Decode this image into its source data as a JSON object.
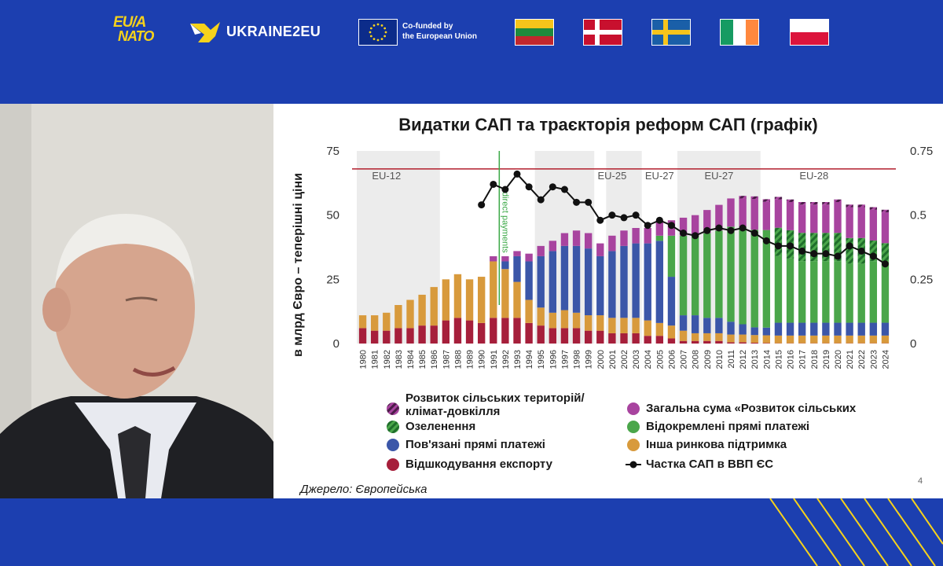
{
  "header": {
    "logo_eu_nato_line1": "EU/A",
    "logo_eu_nato_line2": "NATO",
    "logo_ukraine2eu": "UKRAINE2EU",
    "eu_cofunded_line1": "Co-funded by",
    "eu_cofunded_line2": "the European Union",
    "flags": [
      "lithuania-flag",
      "denmark-flag",
      "sweden-flag",
      "ireland-flag",
      "poland-flag"
    ]
  },
  "slide": {
    "source_text": "Джерело: Європейська",
    "page_number": "4"
  },
  "colors": {
    "export_refunds": "#a61f3b",
    "other_market": "#d89a3c",
    "coupled": "#3b56a8",
    "decoupled": "#4aa64a",
    "greening": "#2f8a3a",
    "rural_total": "#a8449f",
    "rural_climate": "#7d2f78",
    "gdp_line": "#111111",
    "ceiling_line": "#b21f2d",
    "brand_blue": "#1c3fb0"
  },
  "chart_data": {
    "type": "bar",
    "title": "Видатки САП та траєкторія реформ САП (графік)",
    "ylabel": "в млрд Євро – теперішні ціни",
    "ylim": [
      0,
      75
    ],
    "y_ticks": [
      "0",
      "25",
      "50",
      "75"
    ],
    "y2lim": [
      0,
      0.75
    ],
    "y2_ticks": [
      "0",
      "0.25",
      "0.5",
      "0.75"
    ],
    "ceiling_value": 68,
    "x": [
      "1980",
      "1981",
      "1982",
      "1983",
      "1984",
      "1985",
      "1986",
      "1987",
      "1988",
      "1989",
      "1990",
      "1991",
      "1992",
      "1993",
      "1994",
      "1995",
      "1996",
      "1997",
      "1998",
      "1999",
      "2000",
      "2001",
      "2002",
      "2003",
      "2004",
      "2005",
      "2006",
      "2007",
      "2008",
      "2009",
      "2010",
      "2011",
      "2012",
      "2013",
      "2014",
      "2015",
      "2016",
      "2017",
      "2018",
      "2019",
      "2020",
      "2021",
      "2022",
      "2023",
      "2024"
    ],
    "shaded_periods": [
      {
        "label": "EU-12",
        "from": "1980",
        "to": "1986"
      },
      {
        "label": "",
        "from": "1995",
        "to": "1999"
      },
      {
        "label": "EU-25",
        "from": "2001",
        "to": "2003"
      },
      {
        "label": "EU-27",
        "from": "2007",
        "to": "2013"
      }
    ],
    "period_labels": [
      {
        "label": "EU-12",
        "at": "1982"
      },
      {
        "label": "EU-25",
        "at": "2001"
      },
      {
        "label": "EU-27",
        "at": "2005"
      },
      {
        "label": "EU-27",
        "at": "2010"
      },
      {
        "label": "EU-28",
        "at": "2018"
      }
    ],
    "annotation": {
      "text": "direct payments",
      "at": "1992"
    },
    "series": [
      {
        "name": "Відшкодування експорту",
        "key": "export_refunds",
        "values": [
          6,
          5,
          5,
          6,
          6,
          7,
          7,
          9,
          10,
          9,
          8,
          10,
          10,
          10,
          8,
          7,
          6,
          6,
          6,
          5,
          5,
          4,
          4,
          4,
          3,
          3,
          2,
          1,
          1,
          1,
          1,
          0.5,
          0.5,
          0.3,
          0.2,
          0.1,
          0.1,
          0.1,
          0.1,
          0.1,
          0.1,
          0.1,
          0.1,
          0.1,
          0.1
        ]
      },
      {
        "name": "Інша ринкова підтримка",
        "key": "other_market",
        "values": [
          5,
          6,
          7,
          9,
          11,
          12,
          15,
          16,
          17,
          16,
          18,
          22,
          19,
          14,
          9,
          7,
          6,
          7,
          6,
          6,
          6,
          6,
          6,
          6,
          6,
          5,
          5,
          4,
          3,
          3,
          3,
          3,
          3,
          3,
          3,
          3,
          3,
          3,
          3,
          3,
          3,
          3,
          3,
          3,
          3
        ]
      },
      {
        "name": "Пов'язані прямі платежі",
        "key": "coupled",
        "values": [
          0,
          0,
          0,
          0,
          0,
          0,
          0,
          0,
          0,
          0,
          0,
          0,
          3,
          10,
          15,
          20,
          24,
          25,
          26,
          26,
          23,
          26,
          28,
          29,
          30,
          32,
          19,
          6,
          7,
          6,
          6,
          5,
          4,
          3,
          3,
          5,
          5,
          5,
          5,
          5,
          5,
          5,
          5,
          5,
          5
        ]
      },
      {
        "name": "Відокремлені прямі платежі",
        "key": "decoupled",
        "values": [
          0,
          0,
          0,
          0,
          0,
          0,
          0,
          0,
          0,
          0,
          0,
          0,
          0,
          0,
          0,
          0,
          0,
          0,
          0,
          0,
          0,
          0,
          0,
          0,
          0,
          2,
          16,
          31,
          31,
          33,
          34,
          37,
          38,
          38,
          38,
          26,
          25,
          24,
          24,
          24,
          24,
          23,
          23,
          24,
          24
        ]
      },
      {
        "name": "Озеленення",
        "key": "greening",
        "values": [
          0,
          0,
          0,
          0,
          0,
          0,
          0,
          0,
          0,
          0,
          0,
          0,
          0,
          0,
          0,
          0,
          0,
          0,
          0,
          0,
          0,
          0,
          0,
          0,
          0,
          0,
          0,
          0,
          0,
          0,
          0,
          0,
          0,
          0,
          0,
          11,
          11,
          11,
          11,
          11,
          11,
          10,
          10,
          8,
          7
        ]
      },
      {
        "name": "Загальна сума «Розвиток сільських",
        "key": "rural_total",
        "values": [
          0,
          0,
          0,
          0,
          0,
          0,
          0,
          0,
          0,
          0,
          0,
          2,
          2,
          2,
          3,
          4,
          4,
          5,
          6,
          6,
          5,
          6,
          6,
          6,
          6,
          6,
          6,
          7,
          8,
          9,
          10,
          11,
          11,
          12,
          11,
          11,
          11,
          11,
          11,
          11,
          12,
          12,
          12,
          12,
          12
        ]
      },
      {
        "name": "Розвиток сільських територій/клімат-довкілля",
        "key": "rural_climate",
        "values": [
          0,
          0,
          0,
          0,
          0,
          0,
          0,
          0,
          0,
          0,
          0,
          0,
          0,
          0,
          0,
          0,
          0,
          0,
          0,
          0,
          0,
          0,
          0,
          0,
          0,
          0,
          0,
          0,
          0,
          0,
          0,
          0,
          1,
          1,
          1,
          1,
          1,
          1,
          1,
          1,
          1,
          1,
          1,
          1,
          1
        ]
      }
    ],
    "line_series": {
      "name": "Частка САП в ВВП ЄС",
      "axis": "right",
      "values": [
        null,
        null,
        null,
        null,
        null,
        null,
        null,
        null,
        null,
        null,
        0.54,
        0.62,
        0.6,
        0.66,
        0.61,
        0.56,
        0.61,
        0.6,
        0.55,
        0.55,
        0.48,
        0.5,
        0.49,
        0.5,
        0.46,
        0.48,
        0.46,
        0.43,
        0.42,
        0.44,
        0.45,
        0.44,
        0.45,
        0.43,
        0.4,
        0.38,
        0.38,
        0.36,
        0.35,
        0.35,
        0.34,
        0.38,
        0.36,
        0.34,
        0.31
      ]
    },
    "legend": [
      {
        "label": "Розвиток сільських територій/клімат-довкілля",
        "key": "rural_climate",
        "style": "hatched"
      },
      {
        "label": "Загальна сума «Розвиток сільських",
        "key": "rural_total",
        "style": "dot"
      },
      {
        "label": "Озеленення",
        "key": "greening",
        "style": "hatched"
      },
      {
        "label": "Відокремлені прямі платежі",
        "key": "decoupled",
        "style": "dot"
      },
      {
        "label": "Пов'язані прямі платежі",
        "key": "coupled",
        "style": "dot"
      },
      {
        "label": "Інша ринкова підтримка",
        "key": "other_market",
        "style": "dot"
      },
      {
        "label": "Відшкодування експорту",
        "key": "export_refunds",
        "style": "dot"
      },
      {
        "label": "Частка САП в ВВП ЄС",
        "key": "gdp_line",
        "style": "line"
      }
    ],
    "legend_placement": "bottom",
    "grid": false
  }
}
